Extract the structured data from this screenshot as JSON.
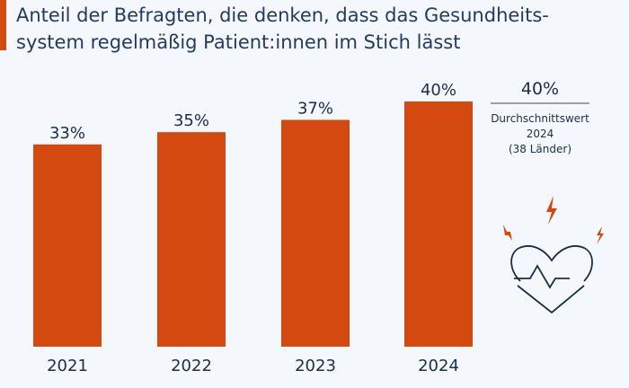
{
  "title": "Anteil der Befragten, die denken, dass das Gesundheits-system regelmäßig Patient:innen im Stich lässt",
  "title_lines": [
    "Anteil der Befragten, die denken, dass das Gesundheits-",
    "system regelmäßig Patient:innen im Stich lässt"
  ],
  "colors": {
    "bar": "#d4490f",
    "text": "#1d2d44",
    "background": "#f4f7fb"
  },
  "chart_data": {
    "type": "bar",
    "categories": [
      "2021",
      "2022",
      "2023",
      "2024"
    ],
    "values": [
      33,
      35,
      37,
      40
    ],
    "data_labels": [
      "33%",
      "35%",
      "37%",
      "40%"
    ],
    "unit": "%",
    "ylim": [
      0,
      40
    ],
    "grid": false
  },
  "side_panel": {
    "value": "40%",
    "label_line1": "Durchschnittswert",
    "label_line2": "2024",
    "label_line3": "(38 Länder)",
    "icon": "heart-with-pulse-and-lightning-icon"
  }
}
